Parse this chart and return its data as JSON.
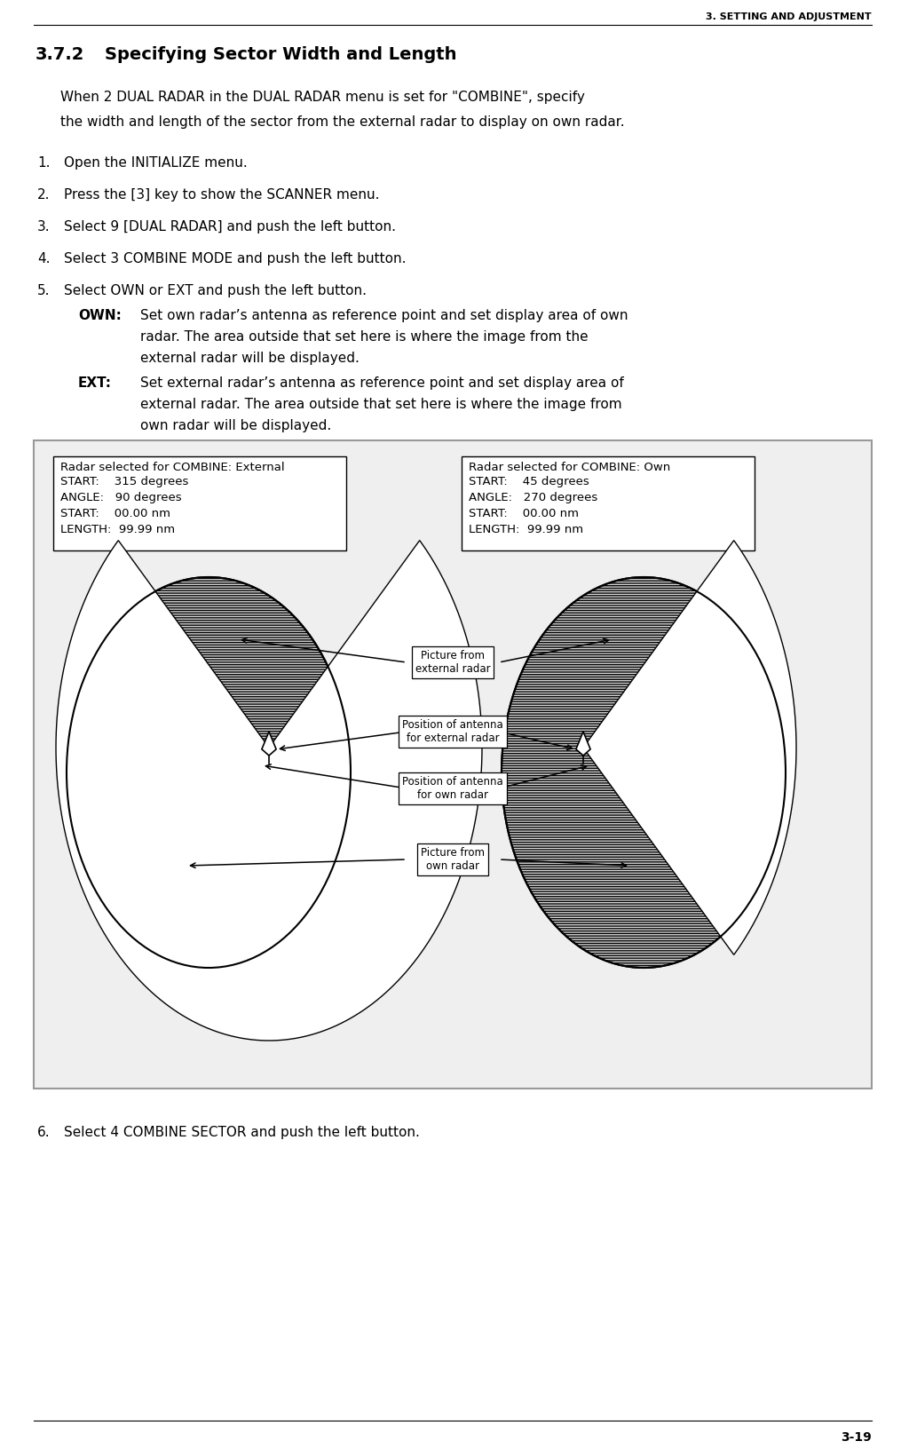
{
  "page_header": "3. SETTING AND ADJUSTMENT",
  "section_num": "3.7.2",
  "section_title": "Specifying Sector Width and Length",
  "intro_line1": "When 2 DUAL RADAR in the DUAL RADAR menu is set for \"COMBINE\", specify",
  "intro_line2": "the width and length of the sector from the external radar to display on own radar.",
  "steps": [
    "Open the INITIALIZE menu.",
    "Press the [3] key to show the SCANNER menu.",
    "Select 9 [DUAL RADAR] and push the left button.",
    "Select 3 COMBINE MODE and push the left button.",
    "Select OWN or EXT and push the left button.",
    "Select 4 COMBINE SECTOR and push the left button."
  ],
  "own_label": "OWN:",
  "own_text_lines": [
    "Set own radar’s antenna as reference point and set display area of own",
    "radar. The area outside that set here is where the image from the",
    "external radar will be displayed."
  ],
  "ext_label": "EXT:",
  "ext_text_lines": [
    "Set external radar’s antenna as reference point and set display area of",
    "external radar. The area outside that set here is where the image from",
    "own radar will be displayed."
  ],
  "box_left_title": "Radar selected for COMBINE: External",
  "box_left_lines": [
    "START:    315 degrees",
    "ANGLE:   90 degrees",
    "START:    00.00 nm",
    "LENGTH:  99.99 nm"
  ],
  "box_right_title": "Radar selected for COMBINE: Own",
  "box_right_lines": [
    "START:    45 degrees",
    "ANGLE:   270 degrees",
    "START:    00.00 nm",
    "LENGTH:  99.99 nm"
  ],
  "label_pic_ext": "Picture from\nexternal radar",
  "label_pos_ext": "Position of antenna\nfor external radar",
  "label_pos_own": "Position of antenna\nfor own radar",
  "label_pic_own": "Picture from\nown radar",
  "page_num": "3-19",
  "bg_color": "#ffffff"
}
